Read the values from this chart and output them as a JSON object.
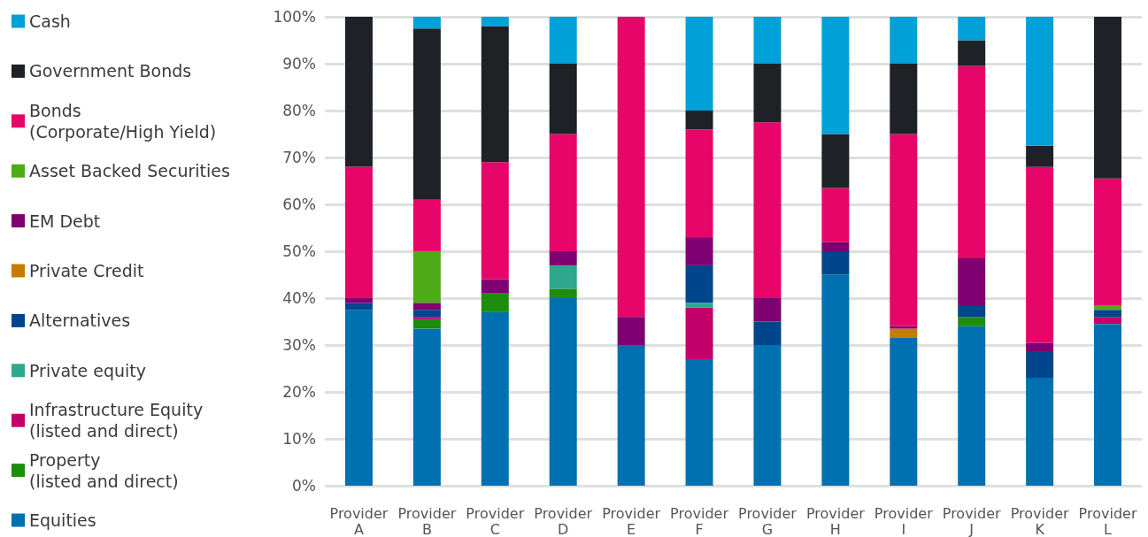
{
  "chart_data": {
    "type": "bar",
    "stacked": true,
    "categories": [
      "Provider\nA",
      "Provider\nB",
      "Provider\nC",
      "Provider\nD",
      "Provider\nE",
      "Provider\nF",
      "Provider\nG",
      "Provider\nH",
      "Provider\nI",
      "Provider\nJ",
      "Provider\nK",
      "Provider\nL"
    ],
    "series": [
      {
        "name": "Equities",
        "color": "#0070b0",
        "values": [
          37.5,
          33.5,
          37,
          40,
          30,
          27,
          30,
          45,
          31.5,
          34,
          23,
          34.5
        ]
      },
      {
        "name": "Property\n(listed and direct)",
        "color": "#1e8c0e",
        "values": [
          null,
          2,
          4,
          2,
          null,
          null,
          null,
          null,
          null,
          2,
          null,
          null
        ]
      },
      {
        "name": "Infrastructure Equity\n(listed and direct)",
        "color": "#c4006a",
        "values": [
          null,
          0.5,
          null,
          null,
          null,
          11,
          null,
          null,
          null,
          null,
          null,
          1.5
        ]
      },
      {
        "name": "Private equity",
        "color": "#2ea88c",
        "values": [
          null,
          null,
          null,
          5,
          null,
          1,
          null,
          null,
          null,
          null,
          null,
          null
        ]
      },
      {
        "name": "Alternatives",
        "color": "#00468c",
        "values": [
          1.5,
          1.5,
          null,
          null,
          null,
          8,
          5,
          5,
          null,
          2.5,
          5.5,
          1.5
        ]
      },
      {
        "name": "Private Credit",
        "color": "#c47d00",
        "values": [
          null,
          null,
          null,
          null,
          null,
          null,
          null,
          null,
          2,
          null,
          null,
          null
        ]
      },
      {
        "name": "EM Debt",
        "color": "#7f0070",
        "values": [
          1,
          1.5,
          3,
          3,
          6,
          6,
          5,
          2,
          0.5,
          10,
          2,
          null
        ]
      },
      {
        "name": "Asset Backed Securities",
        "color": "#4faa18",
        "values": [
          null,
          11,
          null,
          null,
          null,
          null,
          null,
          null,
          null,
          null,
          null,
          1
        ]
      },
      {
        "name": "Bonds\n(Corporate/High Yield)",
        "color": "#e8056a",
        "values": [
          28,
          11,
          25,
          25,
          64,
          23,
          37.5,
          11.5,
          41,
          41,
          37.5,
          27
        ]
      },
      {
        "name": "Government Bonds",
        "color": "#1e2226",
        "values": [
          32,
          36.5,
          29,
          15,
          null,
          4,
          12.5,
          11.5,
          15,
          5.5,
          4.5,
          34.5
        ]
      },
      {
        "name": "Cash",
        "color": "#00a0d8",
        "values": [
          null,
          2.5,
          2,
          10,
          null,
          20,
          10,
          25,
          10,
          5,
          27.5,
          null
        ]
      }
    ],
    "ylim": [
      0,
      100
    ],
    "yticks": [
      {
        "value": 0,
        "label": "0%"
      },
      {
        "value": 10,
        "label": "10%"
      },
      {
        "value": 20,
        "label": "20%"
      },
      {
        "value": 30,
        "label": "30%"
      },
      {
        "value": 40,
        "label": "40%"
      },
      {
        "value": 50,
        "label": "50%"
      },
      {
        "value": 60,
        "label": "60%"
      },
      {
        "value": 70,
        "label": "70%"
      },
      {
        "value": 80,
        "label": "80%"
      },
      {
        "value": 90,
        "label": "90%"
      },
      {
        "value": 100,
        "label": "100%"
      }
    ],
    "grid": "y",
    "legend": "left"
  }
}
